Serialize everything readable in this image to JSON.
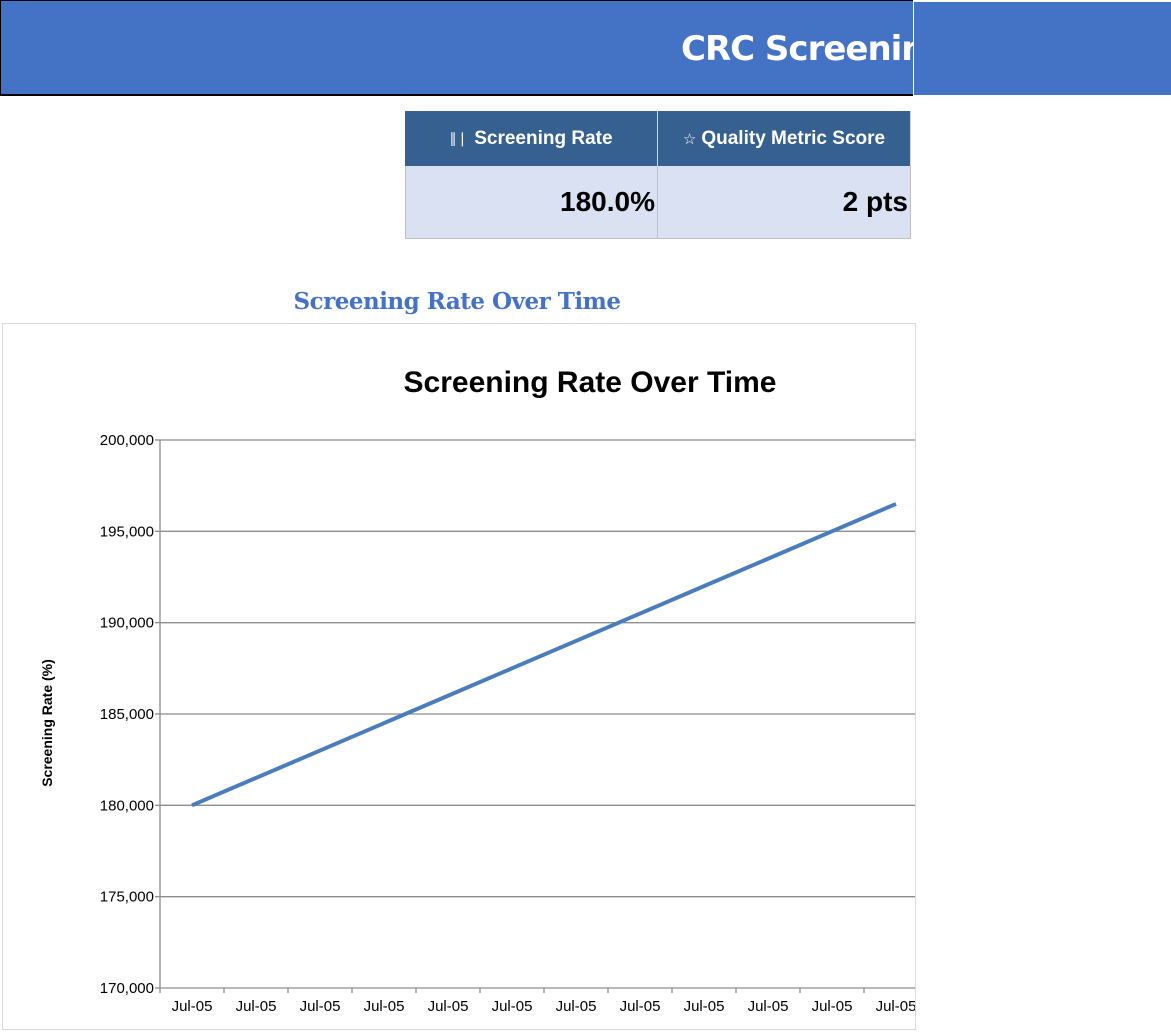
{
  "header": {
    "title": "CRC Screening"
  },
  "kpis": [
    {
      "icon": "bar-chart-icon",
      "icon_glyph": "📊",
      "label": "Screening Rate",
      "value": "180.0%"
    },
    {
      "icon": "star-icon",
      "icon_glyph": "☆",
      "label": "Quality Metric Score",
      "value": "2 pts"
    }
  ],
  "section_title": "Screening Rate Over Time",
  "colors": {
    "header": "#4472c4",
    "kpi_header": "#35608f",
    "kpi_value_bg": "#dae1f2",
    "line": "#4a7ebb"
  },
  "chart_data": {
    "type": "line",
    "title": "Screening Rate Over Time",
    "xlabel": "",
    "ylabel": "Screening Rate (%)",
    "categories": [
      "Jul-05",
      "Jul-05",
      "Jul-05",
      "Jul-05",
      "Jul-05",
      "Jul-05",
      "Jul-05",
      "Jul-05",
      "Jul-05",
      "Jul-05",
      "Jul-05",
      "Jul-05"
    ],
    "values": [
      180000,
      181500,
      183000,
      184500,
      186000,
      187500,
      189000,
      190500,
      192000,
      193500,
      195000,
      196500
    ],
    "ylim": [
      170000,
      200000
    ],
    "yticks": [
      170000,
      175000,
      180000,
      185000,
      190000,
      195000,
      200000
    ],
    "ytick_labels": [
      "170,000",
      "175,000",
      "180,000",
      "185,000",
      "190,000",
      "195,000",
      "200,000"
    ],
    "grid": true,
    "legend": "none"
  }
}
